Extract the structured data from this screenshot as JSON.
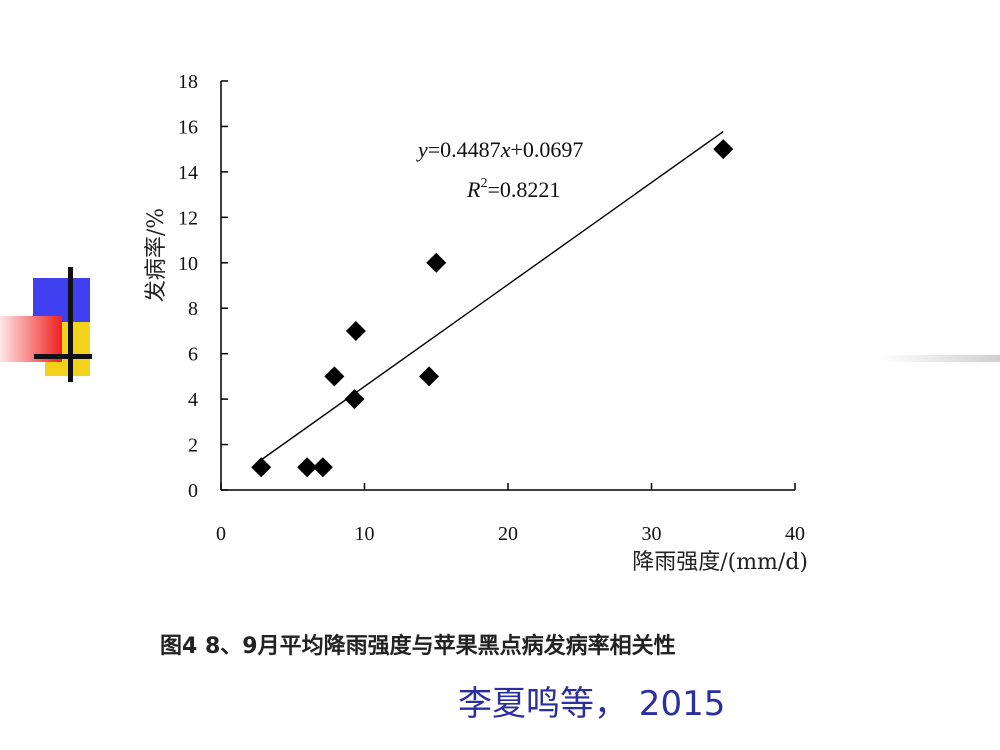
{
  "chart_data": {
    "type": "scatter",
    "xlabel": "降雨强度/(mm/d)",
    "ylabel": "发病率/%",
    "xlim": [
      0,
      40
    ],
    "ylim": [
      0,
      18
    ],
    "x_ticks": [
      "0",
      "10",
      "20",
      "30",
      "40"
    ],
    "y_ticks": [
      "0",
      "2",
      "4",
      "6",
      "8",
      "10",
      "12",
      "14",
      "16",
      "18"
    ],
    "x_tick_values": [
      0,
      10,
      20,
      30,
      40
    ],
    "y_tick_values": [
      0,
      2,
      4,
      6,
      8,
      10,
      12,
      14,
      16,
      18
    ],
    "grid": false,
    "marker": "diamond",
    "marker_color": "#000000",
    "points": [
      {
        "x": 2.8,
        "y": 1
      },
      {
        "x": 6.0,
        "y": 1
      },
      {
        "x": 7.1,
        "y": 1
      },
      {
        "x": 7.9,
        "y": 5
      },
      {
        "x": 9.3,
        "y": 4
      },
      {
        "x": 9.4,
        "y": 7
      },
      {
        "x": 14.5,
        "y": 5
      },
      {
        "x": 15.0,
        "y": 10
      },
      {
        "x": 35.0,
        "y": 15
      }
    ],
    "trendline": {
      "slope": 0.4487,
      "intercept": 0.0697,
      "x_range": [
        2.8,
        35.0
      ]
    },
    "annotations": {
      "equation_y": "y",
      "equation_rest": "=0.4487",
      "equation_x": "x",
      "equation_tail": "+0.0697",
      "r2_R": "R",
      "r2_sup": "2",
      "r2_value": "=0.8221"
    }
  },
  "caption": "图4  8、9月平均降雨强度与苹果黑点病发病率相关性",
  "source": "李夏鸣等， 2015",
  "colors": {
    "deco_blue": "#3d3df5",
    "deco_yellow": "#f2d21a",
    "deco_red": "#ef2020",
    "source_text": "#2b2e9e"
  }
}
